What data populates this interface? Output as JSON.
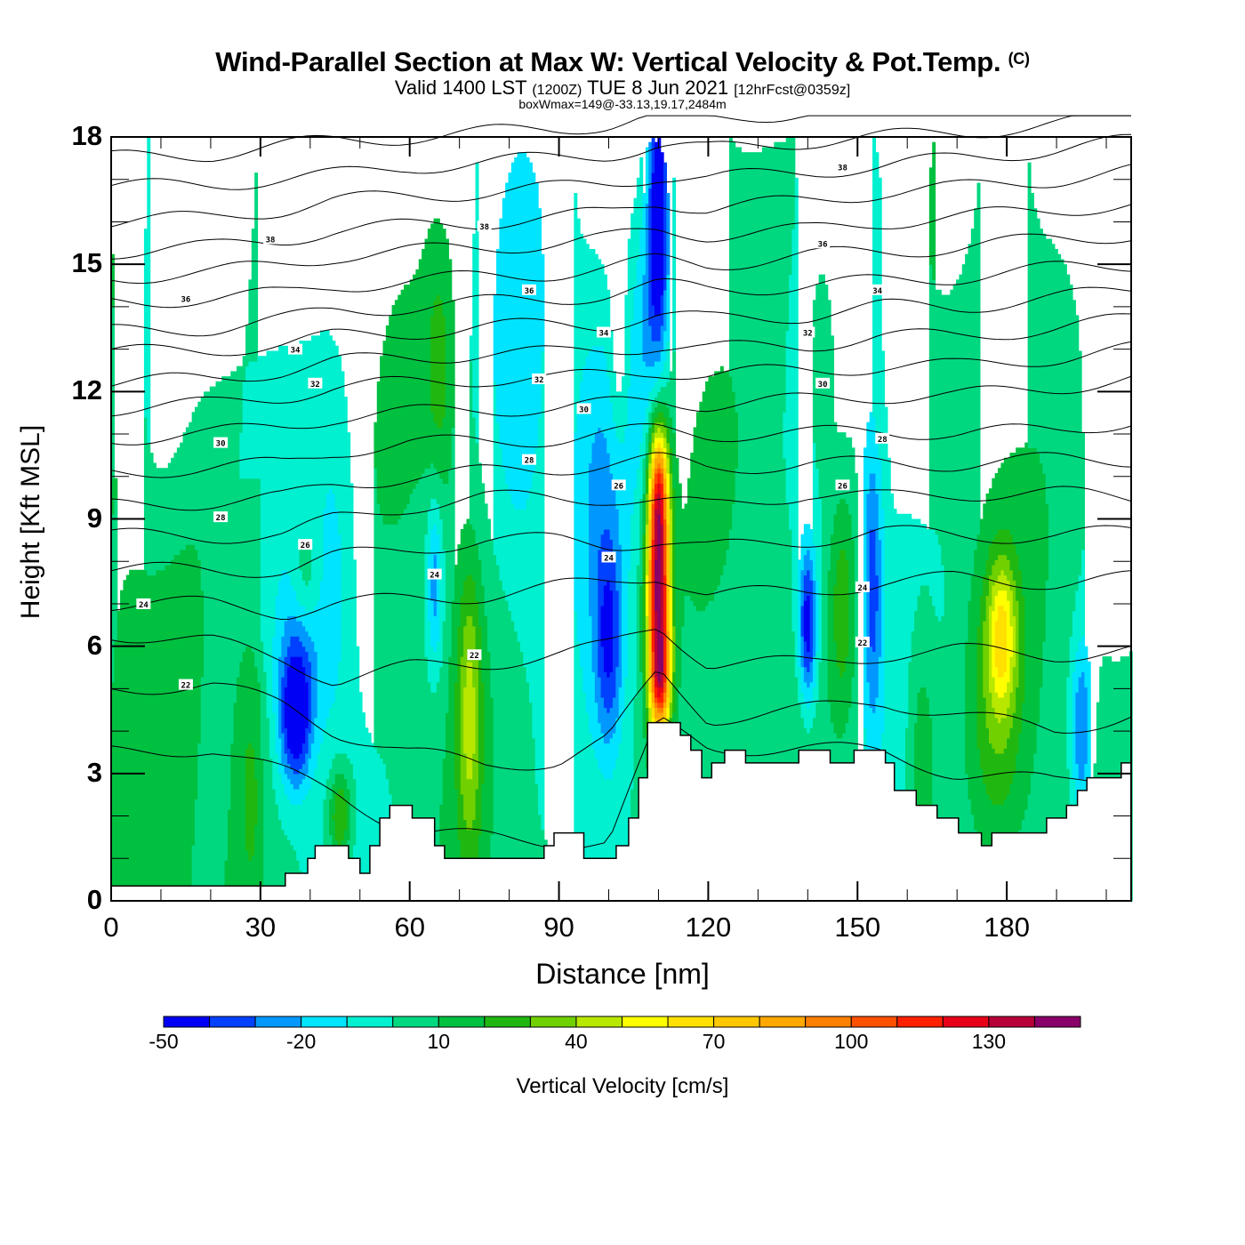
{
  "title": {
    "main": "Wind-Parallel Section at Max W: Vertical Velocity & Pot.Temp.",
    "copyright": "(C)",
    "valid_prefix": "Valid 1400 LST",
    "valid_utc": "(1200Z)",
    "valid_date": "TUE 8 Jun 2021",
    "forecast": "[12hrFcst@0359z]",
    "box_max": "boxWmax=149@-33.13,19.17,2484m"
  },
  "chart_data": {
    "type": "heatmap",
    "title": "Wind-Parallel Section at Max W: Vertical Velocity & Pot.Temp.",
    "xlabel": "Distance [nm]",
    "ylabel": "Height [Kft MSL]",
    "xlim": [
      0,
      205
    ],
    "ylim": [
      0,
      18
    ],
    "x_ticks": [
      0,
      30,
      60,
      90,
      120,
      150,
      180
    ],
    "y_ticks": [
      0,
      3,
      6,
      9,
      12,
      15,
      18
    ],
    "x_minor_step": 10,
    "y_minor_step": 1,
    "colorbar": {
      "label": "Vertical Velocity [cm/s]",
      "levels": [
        -50,
        -40,
        -30,
        -20,
        -10,
        0,
        10,
        20,
        30,
        40,
        50,
        60,
        70,
        80,
        90,
        100,
        110,
        120,
        130,
        140,
        150
      ],
      "tick_labels": [
        "-50",
        "-20",
        "10",
        "40",
        "70",
        "100",
        "130"
      ],
      "tick_values": [
        -50,
        -20,
        10,
        40,
        70,
        100,
        130
      ],
      "colors": [
        "#0000f4",
        "#0040ff",
        "#0098ff",
        "#00e4ff",
        "#00f0d0",
        "#00d880",
        "#00c040",
        "#20b810",
        "#70d000",
        "#b8e800",
        "#ffff00",
        "#ffe000",
        "#ffc800",
        "#ffa800",
        "#ff8000",
        "#ff5000",
        "#ff2000",
        "#e80018",
        "#b80038",
        "#880068"
      ],
      "placement": "bottom"
    },
    "background_value": 3,
    "w_features_cm_s": [
      {
        "x": 110,
        "y": 7.5,
        "sx": 1.6,
        "sy": 2.3,
        "w": 145
      },
      {
        "x": 110,
        "y": 9.8,
        "sx": 1.2,
        "sy": 0.9,
        "w": 40
      },
      {
        "x": 110.5,
        "y": 5.2,
        "sx": 1.4,
        "sy": 0.8,
        "w": 50
      },
      {
        "x": 110,
        "y": 16.5,
        "sx": 1.4,
        "sy": 2.4,
        "w": -55
      },
      {
        "x": 108,
        "y": 13.5,
        "sx": 3,
        "sy": 3,
        "w": -25
      },
      {
        "x": 37,
        "y": 4.2,
        "sx": 2.2,
        "sy": 1.1,
        "w": -45
      },
      {
        "x": 38,
        "y": 5.8,
        "sx": 3,
        "sy": 1.5,
        "w": -25
      },
      {
        "x": 45,
        "y": 7.5,
        "sx": 3,
        "sy": 3,
        "w": -15
      },
      {
        "x": 100,
        "y": 6.0,
        "sx": 2.0,
        "sy": 1.8,
        "w": -35
      },
      {
        "x": 98,
        "y": 10.5,
        "sx": 4,
        "sy": 3,
        "w": -20
      },
      {
        "x": 140,
        "y": 6.5,
        "sx": 1.3,
        "sy": 1.3,
        "w": -50
      },
      {
        "x": 153,
        "y": 7.5,
        "sx": 1.5,
        "sy": 2.5,
        "w": -35
      },
      {
        "x": 65,
        "y": 7.5,
        "sx": 1.2,
        "sy": 1.5,
        "w": -30
      },
      {
        "x": 195,
        "y": 4.0,
        "sx": 1.5,
        "sy": 1.5,
        "w": -35
      },
      {
        "x": 82,
        "y": 12,
        "sx": 4,
        "sy": 4,
        "w": -15
      },
      {
        "x": 72,
        "y": 4.5,
        "sx": 1.8,
        "sy": 2.5,
        "w": 35
      },
      {
        "x": 179,
        "y": 6.3,
        "sx": 2,
        "sy": 1.2,
        "w": 42
      },
      {
        "x": 178,
        "y": 4.5,
        "sx": 4,
        "sy": 2.5,
        "w": 22
      },
      {
        "x": 46,
        "y": 2.0,
        "sx": 1.6,
        "sy": 0.8,
        "w": 35
      },
      {
        "x": 28,
        "y": 3.2,
        "sx": 2.5,
        "sy": 2.5,
        "w": 18
      },
      {
        "x": 66,
        "y": 12.5,
        "sx": 2,
        "sy": 2,
        "w": 18
      },
      {
        "x": 39,
        "y": 7.5,
        "sx": 2,
        "sy": 1,
        "w": 18
      },
      {
        "x": 147,
        "y": 7,
        "sx": 2,
        "sy": 2,
        "w": 25
      },
      {
        "x": 143,
        "y": 12.5,
        "sx": 1.5,
        "sy": 1.5,
        "w": 15
      },
      {
        "x": 163,
        "y": 3.5,
        "sx": 2,
        "sy": 2,
        "w": 20
      },
      {
        "x": 102,
        "y": 13,
        "sx": 1.2,
        "sy": 1.5,
        "w": 15
      },
      {
        "x": 10,
        "y": 14,
        "sx": 4,
        "sy": 5,
        "w": -6
      },
      {
        "x": 200,
        "y": 14,
        "sx": 5,
        "sy": 5,
        "w": -6
      }
    ],
    "theta_levels": [
      21,
      22,
      23,
      24,
      25,
      26,
      27,
      28,
      29,
      30,
      31,
      32,
      33,
      34,
      35,
      36,
      37,
      38,
      39
    ],
    "theta_x": [
      0,
      20,
      35,
      45,
      60,
      75,
      90,
      100,
      110,
      120,
      140,
      155,
      170,
      190,
      205
    ],
    "theta_heights_kft": {
      "21": [
        3.5,
        3.6,
        3.0,
        2.6,
        1.6,
        1.5,
        1.4,
        1.4,
        4.2,
        3.6,
        3.6,
        3.5,
        3.0,
        2.8,
        3.0
      ],
      "22": [
        5.0,
        5.1,
        4.6,
        4.0,
        3.5,
        3.2,
        3.3,
        3.8,
        5.4,
        4.3,
        4.5,
        4.7,
        4.4,
        4.0,
        4.4
      ],
      "23": [
        6.3,
        6.1,
        5.7,
        5.2,
        5.5,
        5.6,
        5.8,
        6.0,
        6.5,
        5.6,
        5.6,
        5.8,
        5.9,
        5.8,
        5.9
      ],
      "24": [
        7.0,
        7.0,
        6.8,
        7.0,
        7.1,
        7.2,
        7.4,
        7.5,
        7.7,
        7.2,
        7.3,
        7.5,
        7.6,
        7.5,
        7.6
      ],
      "25": [
        7.8,
        7.8,
        7.8,
        8.1,
        8.3,
        8.5,
        8.5,
        8.4,
        8.5,
        8.3,
        8.5,
        8.7,
        8.6,
        8.6,
        8.7
      ],
      "26": [
        8.6,
        8.6,
        8.6,
        9.0,
        9.3,
        9.5,
        9.5,
        9.5,
        9.4,
        9.3,
        9.6,
        9.5,
        9.6,
        9.6,
        9.5
      ],
      "27": [
        9.3,
        9.4,
        9.5,
        9.8,
        10.0,
        10.1,
        10.2,
        10.3,
        10.4,
        10.2,
        10.3,
        10.3,
        10.3,
        10.4,
        10.4
      ],
      "28": [
        10.1,
        10.2,
        10.3,
        10.6,
        10.8,
        10.8,
        10.9,
        11.0,
        11.1,
        11.0,
        11.0,
        11.1,
        11.0,
        11.1,
        11.3
      ],
      "29": [
        10.9,
        11.0,
        11.2,
        11.4,
        11.5,
        11.6,
        11.6,
        11.7,
        11.8,
        11.7,
        11.8,
        11.9,
        11.9,
        12.1,
        12.3
      ],
      "30": [
        11.6,
        11.7,
        11.9,
        12.1,
        12.2,
        12.3,
        12.3,
        12.4,
        12.5,
        12.4,
        12.5,
        12.6,
        12.6,
        12.8,
        13.0
      ],
      "31": [
        12.2,
        12.3,
        12.5,
        12.7,
        12.8,
        12.9,
        12.9,
        13.0,
        13.1,
        13.0,
        13.1,
        13.3,
        13.3,
        13.5,
        13.7
      ],
      "32": [
        12.9,
        13.0,
        13.1,
        13.3,
        13.4,
        13.5,
        13.6,
        13.6,
        13.8,
        13.7,
        13.8,
        14.0,
        14.0,
        14.2,
        14.4
      ],
      "33": [
        13.4,
        13.5,
        13.7,
        13.9,
        14.0,
        14.1,
        14.2,
        14.3,
        14.5,
        14.4,
        14.5,
        14.6,
        14.7,
        14.9,
        15.0
      ],
      "34": [
        14.1,
        14.2,
        14.3,
        14.5,
        14.6,
        14.7,
        14.8,
        14.9,
        15.1,
        15.0,
        15.2,
        15.3,
        15.4,
        15.6,
        15.7
      ],
      "35": [
        14.7,
        14.8,
        15.0,
        15.2,
        15.3,
        15.4,
        15.5,
        15.6,
        15.8,
        15.7,
        15.8,
        16.0,
        16.1,
        16.3,
        16.4
      ],
      "36": [
        15.3,
        15.4,
        15.6,
        15.8,
        15.9,
        16.0,
        16.1,
        16.2,
        16.5,
        16.3,
        16.5,
        16.7,
        16.8,
        17.0,
        17.2
      ],
      "37": [
        16.0,
        16.1,
        16.3,
        16.5,
        16.6,
        16.7,
        16.8,
        16.9,
        17.1,
        17.0,
        17.2,
        17.3,
        17.5,
        17.7,
        17.9
      ],
      "38": [
        16.8,
        16.9,
        17.0,
        17.1,
        17.3,
        17.4,
        17.5,
        17.6,
        17.8,
        17.7,
        17.9,
        18.0,
        18.1,
        18.3,
        18.5
      ],
      "39": [
        17.5,
        17.6,
        17.8,
        17.9,
        18.0,
        18.1,
        18.2,
        18.3,
        18.5,
        18.4,
        18.6,
        18.7,
        18.8,
        19.0,
        19.2
      ]
    },
    "contour_labels": [
      {
        "text": "38",
        "x": 32,
        "y": 15.6
      },
      {
        "text": "38",
        "x": 75,
        "y": 15.9
      },
      {
        "text": "38",
        "x": 147,
        "y": 17.3
      },
      {
        "text": "36",
        "x": 15,
        "y": 14.2
      },
      {
        "text": "36",
        "x": 84,
        "y": 14.4
      },
      {
        "text": "36",
        "x": 143,
        "y": 15.5
      },
      {
        "text": "34",
        "x": 37,
        "y": 13.0
      },
      {
        "text": "34",
        "x": 99,
        "y": 13.4
      },
      {
        "text": "34",
        "x": 154,
        "y": 14.4
      },
      {
        "text": "32",
        "x": 41,
        "y": 12.2
      },
      {
        "text": "32",
        "x": 86,
        "y": 12.3
      },
      {
        "text": "32",
        "x": 140,
        "y": 13.4
      },
      {
        "text": "30",
        "x": 22,
        "y": 10.8
      },
      {
        "text": "30",
        "x": 95,
        "y": 11.6
      },
      {
        "text": "30",
        "x": 143,
        "y": 12.2
      },
      {
        "text": "28",
        "x": 22,
        "y": 9.05
      },
      {
        "text": "28",
        "x": 84,
        "y": 10.4
      },
      {
        "text": "28",
        "x": 155,
        "y": 10.9
      },
      {
        "text": "26",
        "x": 39,
        "y": 8.4
      },
      {
        "text": "26",
        "x": 102,
        "y": 9.8
      },
      {
        "text": "26",
        "x": 147,
        "y": 9.8
      },
      {
        "text": "24",
        "x": 6.5,
        "y": 7.0
      },
      {
        "text": "24",
        "x": 65,
        "y": 7.7
      },
      {
        "text": "24",
        "x": 100,
        "y": 8.1
      },
      {
        "text": "24",
        "x": 151,
        "y": 7.4
      },
      {
        "text": "22",
        "x": 15,
        "y": 5.1
      },
      {
        "text": "22",
        "x": 73,
        "y": 5.8
      },
      {
        "text": "22",
        "x": 151,
        "y": 6.1
      }
    ],
    "terrain_kft": [
      [
        0,
        0.35
      ],
      [
        35,
        0.35
      ],
      [
        35,
        0.65
      ],
      [
        39.5,
        0.65
      ],
      [
        39.5,
        1.0
      ],
      [
        41,
        1.0
      ],
      [
        41,
        1.3
      ],
      [
        47.7,
        1.3
      ],
      [
        47.7,
        1.0
      ],
      [
        50,
        1.0
      ],
      [
        50,
        0.65
      ],
      [
        52,
        0.65
      ],
      [
        52,
        1.3
      ],
      [
        54,
        1.3
      ],
      [
        54,
        1.95
      ],
      [
        56,
        1.95
      ],
      [
        56,
        2.25
      ],
      [
        60.5,
        2.25
      ],
      [
        60.5,
        1.95
      ],
      [
        65,
        1.95
      ],
      [
        65,
        1.3
      ],
      [
        67,
        1.3
      ],
      [
        67,
        1.0
      ],
      [
        87,
        1.0
      ],
      [
        87,
        1.3
      ],
      [
        89,
        1.3
      ],
      [
        89,
        1.6
      ],
      [
        95,
        1.6
      ],
      [
        95,
        1.0
      ],
      [
        101.5,
        1.0
      ],
      [
        101.5,
        1.3
      ],
      [
        104,
        1.3
      ],
      [
        104,
        1.95
      ],
      [
        106,
        1.95
      ],
      [
        106,
        2.9
      ],
      [
        107.8,
        2.9
      ],
      [
        107.8,
        4.2
      ],
      [
        114.4,
        4.2
      ],
      [
        114.4,
        3.9
      ],
      [
        116.5,
        3.9
      ],
      [
        116.5,
        3.55
      ],
      [
        118.7,
        3.55
      ],
      [
        118.7,
        2.9
      ],
      [
        120.7,
        2.9
      ],
      [
        120.7,
        3.25
      ],
      [
        123.3,
        3.25
      ],
      [
        123.3,
        3.55
      ],
      [
        127.5,
        3.55
      ],
      [
        127.5,
        3.25
      ],
      [
        138.2,
        3.25
      ],
      [
        138.2,
        3.55
      ],
      [
        144.5,
        3.55
      ],
      [
        144.5,
        3.25
      ],
      [
        149.3,
        3.25
      ],
      [
        149.3,
        3.55
      ],
      [
        155.6,
        3.55
      ],
      [
        155.6,
        3.25
      ],
      [
        157.4,
        3.25
      ],
      [
        157.4,
        2.6
      ],
      [
        161.8,
        2.6
      ],
      [
        161.8,
        2.25
      ],
      [
        166,
        2.25
      ],
      [
        166,
        1.95
      ],
      [
        170.3,
        1.95
      ],
      [
        170.3,
        1.6
      ],
      [
        174.9,
        1.6
      ],
      [
        174.9,
        1.3
      ],
      [
        177,
        1.3
      ],
      [
        177,
        1.6
      ],
      [
        188,
        1.6
      ],
      [
        188,
        1.95
      ],
      [
        192,
        1.95
      ],
      [
        192,
        2.25
      ],
      [
        194.2,
        2.25
      ],
      [
        194.2,
        2.6
      ],
      [
        196.1,
        2.6
      ],
      [
        196.1,
        2.9
      ],
      [
        203,
        2.9
      ],
      [
        203,
        3.25
      ],
      [
        205,
        3.25
      ]
    ]
  }
}
